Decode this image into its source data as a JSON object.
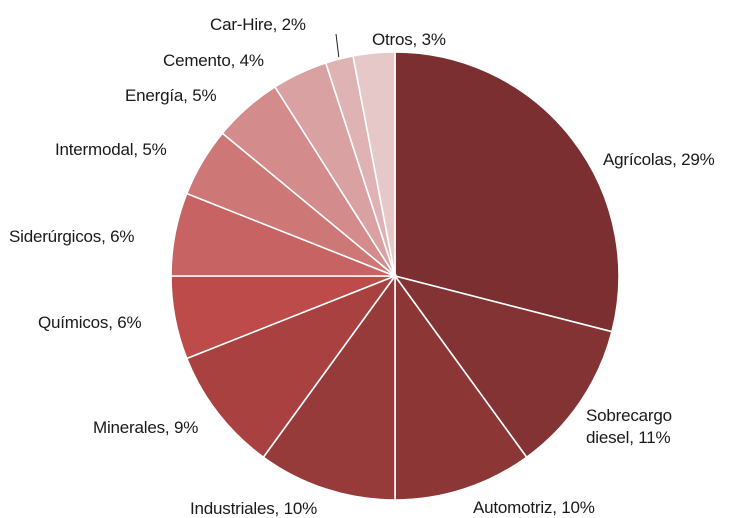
{
  "chart_data": {
    "type": "pie",
    "title": "",
    "start_angle_deg": 0,
    "direction": "clockwise",
    "slices": [
      {
        "label": "Agrícolas, 29%",
        "value": 29,
        "color": "#7b2f30"
      },
      {
        "label": "Sobrecargo diesel, 11%",
        "value": 11,
        "color": "#843334"
      },
      {
        "label": "Automotriz, 10%",
        "value": 10,
        "color": "#8c3636"
      },
      {
        "label": "Industriales, 10%",
        "value": 10,
        "color": "#963a3a"
      },
      {
        "label": "Minerales, 9%",
        "value": 9,
        "color": "#a94141"
      },
      {
        "label": "Químicos, 6%",
        "value": 6,
        "color": "#bc4b4a"
      },
      {
        "label": "Siderúrgicos, 6%",
        "value": 6,
        "color": "#c76363"
      },
      {
        "label": "Intermodal, 5%",
        "value": 5,
        "color": "#cd7777"
      },
      {
        "label": "Energía, 5%",
        "value": 5,
        "color": "#d48b8b"
      },
      {
        "label": "Cemento, 4%",
        "value": 4,
        "color": "#d9a1a1"
      },
      {
        "label": "Car-Hire, 2%",
        "value": 2,
        "color": "#dfb3b3"
      },
      {
        "label": "Otros, 3%",
        "value": 3,
        "color": "#e6c8c8"
      }
    ]
  }
}
